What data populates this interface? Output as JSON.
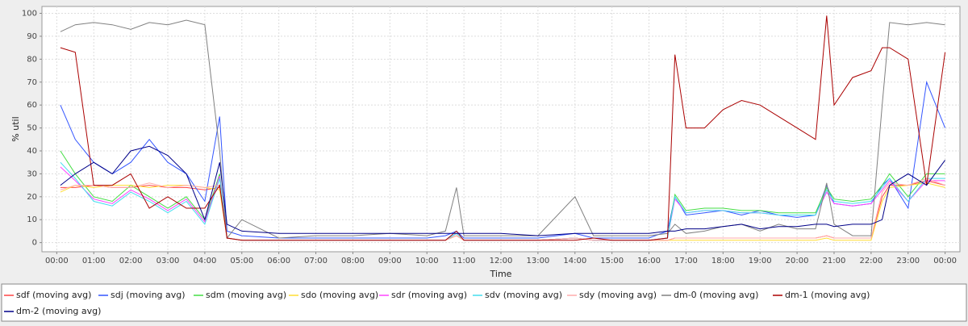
{
  "chart_data": {
    "type": "line",
    "y_label": "% util",
    "x_label": "Time",
    "x": [
      0.1,
      0.5,
      1,
      1.5,
      2,
      2.5,
      3,
      3.5,
      4,
      4.4,
      4.6,
      5,
      6,
      7,
      8,
      9,
      10,
      10.5,
      10.8,
      11,
      12,
      13,
      14,
      14.5,
      15,
      16,
      16.5,
      16.7,
      17,
      17.5,
      18,
      18.5,
      19,
      19.5,
      20,
      20.5,
      20.8,
      21,
      21.5,
      22,
      22.3,
      22.5,
      23,
      23.5,
      24
    ],
    "xlim": [
      -0.4,
      24.4
    ],
    "xticks": [
      {
        "value": 0,
        "label": "00:00"
      },
      {
        "value": 1,
        "label": "01:00"
      },
      {
        "value": 2,
        "label": "02:00"
      },
      {
        "value": 3,
        "label": "03:00"
      },
      {
        "value": 4,
        "label": "04:00"
      },
      {
        "value": 5,
        "label": "05:00"
      },
      {
        "value": 6,
        "label": "06:00"
      },
      {
        "value": 7,
        "label": "07:00"
      },
      {
        "value": 8,
        "label": "08:00"
      },
      {
        "value": 9,
        "label": "09:00"
      },
      {
        "value": 10,
        "label": "10:00"
      },
      {
        "value": 11,
        "label": "11:00"
      },
      {
        "value": 12,
        "label": "12:00"
      },
      {
        "value": 13,
        "label": "13:00"
      },
      {
        "value": 14,
        "label": "14:00"
      },
      {
        "value": 15,
        "label": "15:00"
      },
      {
        "value": 16,
        "label": "16:00"
      },
      {
        "value": 17,
        "label": "17:00"
      },
      {
        "value": 18,
        "label": "18:00"
      },
      {
        "value": 19,
        "label": "19:00"
      },
      {
        "value": 20,
        "label": "20:00"
      },
      {
        "value": 21,
        "label": "21:00"
      },
      {
        "value": 22,
        "label": "22:00"
      },
      {
        "value": 23,
        "label": "23:00"
      },
      {
        "value": 24,
        "label": "00:00"
      }
    ],
    "ylim": [
      -4,
      103
    ],
    "yticks": [
      0,
      10,
      20,
      30,
      40,
      50,
      60,
      70,
      80,
      90,
      100
    ],
    "grid": true,
    "series": [
      {
        "name": "sdf (moving avg)",
        "color": "#ff4444",
        "values": [
          24,
          24,
          25,
          24,
          24,
          25,
          24,
          24,
          23,
          24,
          2,
          1,
          1,
          1,
          1,
          1,
          1,
          1,
          3,
          1,
          1,
          1,
          2,
          1,
          1,
          1,
          1,
          2,
          2,
          2,
          2,
          2,
          2,
          2,
          2,
          2,
          3,
          2,
          2,
          2,
          20,
          25,
          25,
          27,
          25
        ]
      },
      {
        "name": "sdj (moving avg)",
        "color": "#3355ff",
        "values": [
          60,
          45,
          35,
          30,
          35,
          45,
          35,
          30,
          18,
          55,
          5,
          3,
          2,
          2,
          2,
          2,
          2,
          3,
          5,
          2,
          2,
          2,
          4,
          2,
          2,
          2,
          5,
          20,
          12,
          13,
          14,
          12,
          14,
          12,
          11,
          12,
          25,
          17,
          16,
          17,
          25,
          28,
          15,
          70,
          50
        ]
      },
      {
        "name": "sdm (moving avg)",
        "color": "#44dd44",
        "values": [
          40,
          30,
          20,
          18,
          25,
          20,
          15,
          20,
          10,
          30,
          2,
          1,
          1,
          1,
          1,
          1,
          1,
          1,
          4,
          1,
          1,
          1,
          2,
          1,
          1,
          1,
          2,
          21,
          14,
          15,
          15,
          14,
          14,
          13,
          13,
          13,
          24,
          19,
          18,
          19,
          25,
          30,
          20,
          30,
          30
        ]
      },
      {
        "name": "sdo (moving avg)",
        "color": "#ffdd33",
        "values": [
          22,
          25,
          24,
          25,
          25,
          24,
          25,
          25,
          24,
          23,
          2,
          1,
          1,
          1,
          1,
          1,
          1,
          1,
          3,
          1,
          1,
          1,
          2,
          1,
          1,
          1,
          1,
          1,
          1,
          1,
          1,
          1,
          1,
          1,
          1,
          1,
          2,
          1,
          1,
          1,
          18,
          24,
          25,
          26,
          24
        ]
      },
      {
        "name": "sdr (moving avg)",
        "color": "#ff44ff",
        "values": [
          33,
          27,
          19,
          17,
          23,
          19,
          14,
          19,
          9,
          29,
          2,
          1,
          1,
          1,
          1,
          1,
          1,
          1,
          4,
          1,
          1,
          1,
          2,
          1,
          1,
          1,
          2,
          19,
          13,
          14,
          14,
          13,
          13,
          12,
          12,
          12,
          22,
          17,
          16,
          17,
          23,
          27,
          18,
          27,
          27
        ]
      },
      {
        "name": "sdv (moving avg)",
        "color": "#44ddee",
        "values": [
          35,
          28,
          18,
          16,
          22,
          18,
          13,
          18,
          8,
          28,
          2,
          1,
          1,
          1,
          1,
          1,
          1,
          1,
          4,
          1,
          1,
          1,
          2,
          1,
          1,
          1,
          2,
          20,
          13,
          14,
          14,
          13,
          13,
          12,
          12,
          12,
          23,
          18,
          17,
          18,
          24,
          28,
          18,
          28,
          28
        ]
      },
      {
        "name": "sdy (moving avg)",
        "color": "#ffaaaa",
        "values": [
          23,
          25,
          25,
          24,
          24,
          26,
          24,
          25,
          24,
          25,
          2,
          1,
          1,
          1,
          1,
          1,
          1,
          1,
          3,
          1,
          1,
          1,
          2,
          1,
          1,
          1,
          1,
          2,
          2,
          2,
          2,
          2,
          2,
          2,
          2,
          2,
          3,
          2,
          2,
          2,
          22,
          26,
          25,
          28,
          25
        ]
      },
      {
        "name": "dm-0 (moving avg)",
        "color": "#808080",
        "values": [
          92,
          95,
          96,
          95,
          93,
          96,
          95,
          97,
          95,
          40,
          2,
          10,
          2,
          3,
          3,
          4,
          3,
          5,
          24,
          3,
          3,
          3,
          20,
          3,
          3,
          3,
          4,
          8,
          4,
          5,
          7,
          8,
          5,
          8,
          6,
          6,
          26,
          8,
          3,
          3,
          60,
          96,
          95,
          96,
          95
        ]
      },
      {
        "name": "dm-1 (moving avg)",
        "color": "#aa0000",
        "values": [
          85,
          83,
          25,
          25,
          30,
          15,
          20,
          15,
          15,
          25,
          2,
          1,
          1,
          1,
          1,
          1,
          1,
          1,
          5,
          1,
          1,
          1,
          1,
          2,
          1,
          1,
          2,
          82,
          50,
          50,
          58,
          62,
          60,
          55,
          50,
          45,
          99,
          60,
          72,
          75,
          85,
          85,
          80,
          25,
          83
        ]
      },
      {
        "name": "dm-2 (moving avg)",
        "color": "#000088",
        "values": [
          25,
          30,
          35,
          30,
          40,
          42,
          38,
          30,
          10,
          35,
          8,
          5,
          4,
          4,
          4,
          4,
          4,
          4,
          4,
          4,
          4,
          3,
          4,
          4,
          4,
          4,
          5,
          5,
          6,
          6,
          7,
          8,
          6,
          7,
          7,
          8,
          8,
          7,
          8,
          8,
          10,
          25,
          30,
          25,
          36
        ]
      }
    ]
  }
}
